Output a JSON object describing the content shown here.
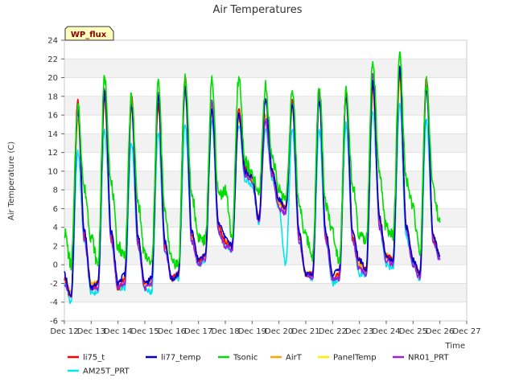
{
  "chart_data": {
    "type": "line",
    "title": "Air Temperatures",
    "xlabel": "Time",
    "ylabel": "Air Temperature (C)",
    "site_label": "WP_flux",
    "ylim": [
      -6,
      24
    ],
    "yticks": [
      "-6",
      "-4",
      "-2",
      "0",
      "2",
      "4",
      "6",
      "8",
      "10",
      "12",
      "14",
      "16",
      "18",
      "20",
      "22",
      "24"
    ],
    "xlim": [
      12,
      27
    ],
    "xticks": [
      "Dec 12",
      "Dec 13",
      "Dec 14",
      "Dec 15",
      "Dec 16",
      "Dec 17",
      "Dec 18",
      "Dec 19",
      "Dec 20",
      "Dec 21",
      "Dec 22",
      "Dec 23",
      "Dec 24",
      "Dec 25",
      "Dec 26",
      "Dec 27"
    ],
    "grid": "horizontal bands",
    "legend_position": "bottom",
    "x_days": [
      12.0,
      12.25,
      12.5,
      12.75,
      13.0,
      13.25,
      13.5,
      13.75,
      14.0,
      14.25,
      14.5,
      14.75,
      15.0,
      15.25,
      15.5,
      15.75,
      16.0,
      16.25,
      16.5,
      16.75,
      17.0,
      17.25,
      17.5,
      17.75,
      18.0,
      18.25,
      18.5,
      18.75,
      19.0,
      19.25,
      19.5,
      19.75,
      20.0,
      20.25,
      20.5,
      20.75,
      21.0,
      21.25,
      21.5,
      21.75,
      22.0,
      22.25,
      22.5,
      22.75,
      23.0,
      23.25,
      23.5,
      23.75,
      24.0,
      24.25,
      24.5,
      24.75,
      25.0,
      25.25,
      25.5,
      25.75,
      26.0
    ],
    "series": [
      {
        "name": "li75_t",
        "color": "#ff0000",
        "values": [
          -1.5,
          -3.5,
          17.5,
          3.0,
          -2.5,
          -2.0,
          18.0,
          3.0,
          -2.5,
          -1.5,
          18.0,
          2.5,
          -2.0,
          -1.5,
          17.0,
          2.0,
          -1.5,
          -1.0,
          20.0,
          3.0,
          0.5,
          1.0,
          17.5,
          4.0,
          2.5,
          2.0,
          16.5,
          10.5,
          9.5,
          5.0,
          15.5,
          10.0,
          7.0,
          6.0,
          17.5,
          3.0,
          -1.0,
          -1.0,
          18.5,
          3.0,
          -1.5,
          -1.0,
          18.5,
          3.0,
          0.5,
          -0.5,
          19.0,
          5.0,
          1.0,
          0.5,
          20.5,
          4.0,
          0.5,
          -1.0,
          20.0,
          3.0,
          1.0
        ]
      },
      {
        "name": "li77_temp",
        "color": "#0000cc",
        "values": [
          -1.0,
          -3.5,
          16.5,
          3.5,
          -2.5,
          -2.0,
          18.5,
          3.5,
          -2.0,
          -1.0,
          17.0,
          3.0,
          -2.0,
          -1.5,
          18.0,
          2.5,
          -1.5,
          -1.0,
          19.0,
          3.5,
          0.5,
          1.0,
          16.5,
          4.5,
          3.0,
          2.0,
          16.0,
          10.0,
          9.5,
          5.0,
          17.5,
          10.0,
          7.0,
          6.0,
          17.0,
          3.5,
          -1.0,
          -1.0,
          17.5,
          3.5,
          -1.0,
          -0.5,
          18.0,
          3.5,
          0.5,
          -0.5,
          19.5,
          5.0,
          1.0,
          0.5,
          21.0,
          4.0,
          0.5,
          -1.0,
          19.0,
          3.0,
          1.0
        ]
      },
      {
        "name": "Tsonic",
        "color": "#00dd00",
        "values": [
          3.5,
          0.0,
          17.0,
          8.0,
          3.0,
          0.0,
          20.0,
          8.5,
          2.0,
          1.0,
          18.0,
          6.5,
          1.0,
          0.0,
          19.5,
          5.5,
          0.5,
          0.0,
          20.0,
          7.5,
          3.0,
          2.5,
          19.5,
          7.5,
          8.0,
          3.0,
          20.0,
          11.0,
          9.5,
          7.5,
          19.0,
          11.5,
          8.0,
          7.0,
          18.5,
          6.5,
          3.0,
          1.0,
          19.0,
          6.5,
          3.5,
          0.5,
          18.5,
          8.5,
          3.0,
          2.5,
          21.5,
          9.5,
          4.0,
          3.0,
          22.5,
          9.0,
          6.0,
          1.0,
          19.5,
          8.0,
          4.5
        ]
      },
      {
        "name": "AirT",
        "color": "#ffa500",
        "values": [
          -1.5,
          -3.0,
          16.5,
          3.0,
          -2.0,
          -2.0,
          18.0,
          3.0,
          -2.5,
          -1.5,
          17.0,
          2.5,
          -2.5,
          -2.0,
          17.5,
          2.0,
          -1.5,
          -1.0,
          19.0,
          3.0,
          0.5,
          1.0,
          17.0,
          4.0,
          2.5,
          2.0,
          16.0,
          10.0,
          9.0,
          5.0,
          16.0,
          10.0,
          6.5,
          6.0,
          17.0,
          3.0,
          -1.0,
          -1.0,
          18.5,
          3.0,
          -1.5,
          -1.0,
          18.0,
          3.0,
          0.0,
          -0.5,
          19.0,
          4.5,
          1.0,
          0.5,
          20.0,
          4.0,
          0.5,
          -1.0,
          19.5,
          3.0,
          1.0
        ]
      },
      {
        "name": "PanelTemp",
        "color": "#ffee00",
        "values": [
          -1.5,
          -3.0,
          15.5,
          3.0,
          -2.0,
          -2.0,
          17.0,
          3.0,
          -2.5,
          -1.5,
          16.5,
          2.5,
          -2.0,
          -2.0,
          17.0,
          2.0,
          -1.5,
          -1.0,
          18.5,
          3.0,
          0.5,
          1.0,
          16.5,
          4.0,
          2.5,
          2.0,
          15.5,
          10.0,
          9.0,
          5.0,
          15.5,
          10.0,
          6.5,
          6.0,
          16.5,
          3.0,
          -1.0,
          -1.0,
          18.0,
          3.0,
          -1.5,
          -1.0,
          17.5,
          3.0,
          0.0,
          -0.5,
          18.5,
          4.5,
          1.0,
          0.5,
          19.5,
          4.0,
          0.5,
          -1.0,
          19.0,
          3.0,
          1.0
        ]
      },
      {
        "name": "NR01_PRT",
        "color": "#9922dd",
        "values": [
          -2.0,
          -3.5,
          16.5,
          2.5,
          -2.5,
          -2.5,
          19.0,
          2.5,
          -2.5,
          -2.0,
          17.5,
          2.0,
          -2.5,
          -2.0,
          18.5,
          1.5,
          -1.5,
          -1.0,
          19.5,
          2.5,
          0.0,
          0.5,
          17.5,
          3.5,
          2.0,
          1.5,
          16.0,
          9.5,
          9.0,
          4.5,
          15.5,
          9.5,
          6.0,
          5.5,
          17.0,
          2.5,
          -1.0,
          -1.5,
          18.0,
          2.5,
          -1.5,
          -1.5,
          18.0,
          2.5,
          -0.5,
          -1.0,
          20.5,
          4.0,
          0.5,
          0.0,
          21.0,
          3.5,
          0.0,
          -1.5,
          19.5,
          2.5,
          0.5
        ]
      },
      {
        "name": "AM25T_PRT",
        "color": "#00e5ee",
        "values": [
          -2.0,
          -4.0,
          12.0,
          2.5,
          -3.0,
          -3.0,
          14.5,
          2.5,
          -2.5,
          -2.5,
          13.0,
          2.0,
          -2.5,
          -3.0,
          14.0,
          1.5,
          -1.5,
          -1.5,
          15.0,
          2.5,
          0.0,
          0.5,
          15.5,
          3.5,
          2.0,
          1.5,
          15.0,
          9.0,
          8.5,
          4.5,
          14.5,
          9.0,
          6.0,
          0.0,
          14.5,
          2.5,
          -1.0,
          -1.5,
          14.5,
          2.5,
          -2.0,
          -1.5,
          15.0,
          2.5,
          -1.0,
          -1.0,
          16.5,
          4.0,
          0.0,
          -0.5,
          17.0,
          3.0,
          0.0,
          -1.5,
          15.5,
          2.5,
          0.5
        ]
      }
    ]
  }
}
